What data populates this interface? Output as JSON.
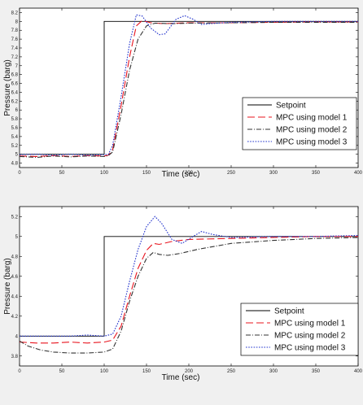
{
  "chart_data": [
    {
      "type": "line",
      "xlabel": "Time (sec)",
      "ylabel": "Pressure (barg)",
      "xlim": [
        0,
        400
      ],
      "ylim": [
        4.7,
        8.3
      ],
      "xticks": [
        0,
        50,
        100,
        150,
        200,
        250,
        300,
        350,
        400
      ],
      "yticks": [
        4.8,
        5,
        5.2,
        5.4,
        5.6,
        5.8,
        6,
        6.2,
        6.4,
        6.6,
        6.8,
        7,
        7.2,
        7.4,
        7.6,
        7.8,
        8,
        8.2
      ],
      "yticklabels": [
        "4.8",
        "5",
        "5.2",
        "5.4",
        "5.6",
        "5.8",
        "6",
        "6.2",
        "6.4",
        "6.6",
        "6.8",
        "7",
        "7.2",
        "7.4",
        "7.6",
        "7.8",
        "8",
        "8.2"
      ],
      "grid": false,
      "legend_position": "lower-right",
      "series": [
        {
          "name": "Setpoint",
          "color": "#000000",
          "dash": "solid",
          "points": [
            [
              0,
              5
            ],
            [
              100,
              5
            ],
            [
              100,
              8
            ],
            [
              400,
              8
            ]
          ]
        },
        {
          "name": "MPC using model 1",
          "color": "#e8141e",
          "dash": "longdash",
          "points": [
            [
              0,
              4.96
            ],
            [
              20,
              4.95
            ],
            [
              40,
              4.97
            ],
            [
              60,
              4.95
            ],
            [
              80,
              4.97
            ],
            [
              100,
              4.96
            ],
            [
              105,
              4.98
            ],
            [
              110,
              5.1
            ],
            [
              120,
              6.1
            ],
            [
              130,
              7.2
            ],
            [
              138,
              7.9
            ],
            [
              145,
              8.02
            ],
            [
              155,
              7.97
            ],
            [
              170,
              7.95
            ],
            [
              200,
              7.97
            ],
            [
              250,
              7.97
            ],
            [
              300,
              7.98
            ],
            [
              350,
              7.99
            ],
            [
              400,
              7.99
            ]
          ]
        },
        {
          "name": "MPC using model 2",
          "color": "#333333",
          "dash": "dashdot",
          "points": [
            [
              0,
              4.95
            ],
            [
              20,
              4.93
            ],
            [
              40,
              4.96
            ],
            [
              60,
              4.94
            ],
            [
              80,
              4.96
            ],
            [
              100,
              4.95
            ],
            [
              105,
              4.97
            ],
            [
              110,
              5.05
            ],
            [
              120,
              5.9
            ],
            [
              130,
              6.9
            ],
            [
              140,
              7.6
            ],
            [
              150,
              7.9
            ],
            [
              160,
              7.96
            ],
            [
              180,
              7.95
            ],
            [
              200,
              7.96
            ],
            [
              250,
              7.97
            ],
            [
              300,
              7.98
            ],
            [
              350,
              7.98
            ],
            [
              400,
              7.98
            ]
          ]
        },
        {
          "name": "MPC using model 3",
          "color": "#2233cc",
          "dash": "dotted",
          "points": [
            [
              0,
              4.99
            ],
            [
              20,
              5.0
            ],
            [
              40,
              4.98
            ],
            [
              60,
              5.0
            ],
            [
              80,
              4.98
            ],
            [
              100,
              4.99
            ],
            [
              105,
              5.0
            ],
            [
              110,
              5.2
            ],
            [
              120,
              6.3
            ],
            [
              130,
              7.5
            ],
            [
              138,
              8.15
            ],
            [
              145,
              8.12
            ],
            [
              155,
              7.85
            ],
            [
              165,
              7.7
            ],
            [
              172,
              7.72
            ],
            [
              185,
              8.05
            ],
            [
              195,
              8.13
            ],
            [
              205,
              8.05
            ],
            [
              215,
              7.93
            ],
            [
              225,
              7.95
            ],
            [
              250,
              7.98
            ],
            [
              300,
              8.0
            ],
            [
              350,
              8.0
            ],
            [
              400,
              8.0
            ]
          ]
        }
      ]
    },
    {
      "type": "line",
      "xlabel": "Time (sec)",
      "ylabel": "Pressure (barg)",
      "xlim": [
        0,
        400
      ],
      "ylim": [
        3.7,
        5.3
      ],
      "xticks": [
        0,
        50,
        100,
        150,
        200,
        250,
        300,
        350,
        400
      ],
      "yticks": [
        3.8,
        4,
        4.2,
        4.4,
        4.6,
        4.8,
        5,
        5.2
      ],
      "yticklabels": [
        "3.8",
        "4",
        "4.2",
        "4.4",
        "4.6",
        "4.8",
        "5",
        "5.2"
      ],
      "grid": false,
      "legend_position": "lower-right",
      "series": [
        {
          "name": "Setpoint",
          "color": "#000000",
          "dash": "solid",
          "points": [
            [
              0,
              4.0
            ],
            [
              100,
              4.0
            ],
            [
              100,
              5.0
            ],
            [
              400,
              5.0
            ]
          ]
        },
        {
          "name": "MPC using model 1",
          "color": "#e8141e",
          "dash": "longdash",
          "points": [
            [
              0,
              3.94
            ],
            [
              20,
              3.93
            ],
            [
              40,
              3.93
            ],
            [
              60,
              3.94
            ],
            [
              80,
              3.93
            ],
            [
              100,
              3.94
            ],
            [
              110,
              3.96
            ],
            [
              120,
              4.1
            ],
            [
              130,
              4.4
            ],
            [
              140,
              4.68
            ],
            [
              150,
              4.86
            ],
            [
              158,
              4.93
            ],
            [
              165,
              4.92
            ],
            [
              180,
              4.95
            ],
            [
              200,
              4.97
            ],
            [
              250,
              4.98
            ],
            [
              300,
              4.99
            ],
            [
              350,
              5.0
            ],
            [
              400,
              5.0
            ]
          ]
        },
        {
          "name": "MPC using model 2",
          "color": "#333333",
          "dash": "dashdot",
          "points": [
            [
              0,
              3.95
            ],
            [
              10,
              3.9
            ],
            [
              25,
              3.86
            ],
            [
              40,
              3.84
            ],
            [
              60,
              3.83
            ],
            [
              80,
              3.83
            ],
            [
              100,
              3.84
            ],
            [
              110,
              3.87
            ],
            [
              120,
              4.05
            ],
            [
              130,
              4.35
            ],
            [
              140,
              4.6
            ],
            [
              150,
              4.78
            ],
            [
              158,
              4.84
            ],
            [
              165,
              4.82
            ],
            [
              175,
              4.81
            ],
            [
              190,
              4.83
            ],
            [
              210,
              4.87
            ],
            [
              250,
              4.93
            ],
            [
              300,
              4.96
            ],
            [
              350,
              4.98
            ],
            [
              400,
              4.99
            ]
          ]
        },
        {
          "name": "MPC using model 3",
          "color": "#2233cc",
          "dash": "dotted",
          "points": [
            [
              0,
              4.0
            ],
            [
              20,
              4.0
            ],
            [
              40,
              4.0
            ],
            [
              60,
              4.0
            ],
            [
              80,
              4.01
            ],
            [
              100,
              4.0
            ],
            [
              110,
              4.02
            ],
            [
              120,
              4.2
            ],
            [
              130,
              4.55
            ],
            [
              140,
              4.87
            ],
            [
              150,
              5.1
            ],
            [
              160,
              5.2
            ],
            [
              168,
              5.13
            ],
            [
              180,
              4.97
            ],
            [
              192,
              4.93
            ],
            [
              205,
              5.0
            ],
            [
              215,
              5.05
            ],
            [
              228,
              5.02
            ],
            [
              250,
              4.99
            ],
            [
              300,
              5.0
            ],
            [
              350,
              5.0
            ],
            [
              400,
              5.01
            ]
          ]
        }
      ]
    }
  ]
}
